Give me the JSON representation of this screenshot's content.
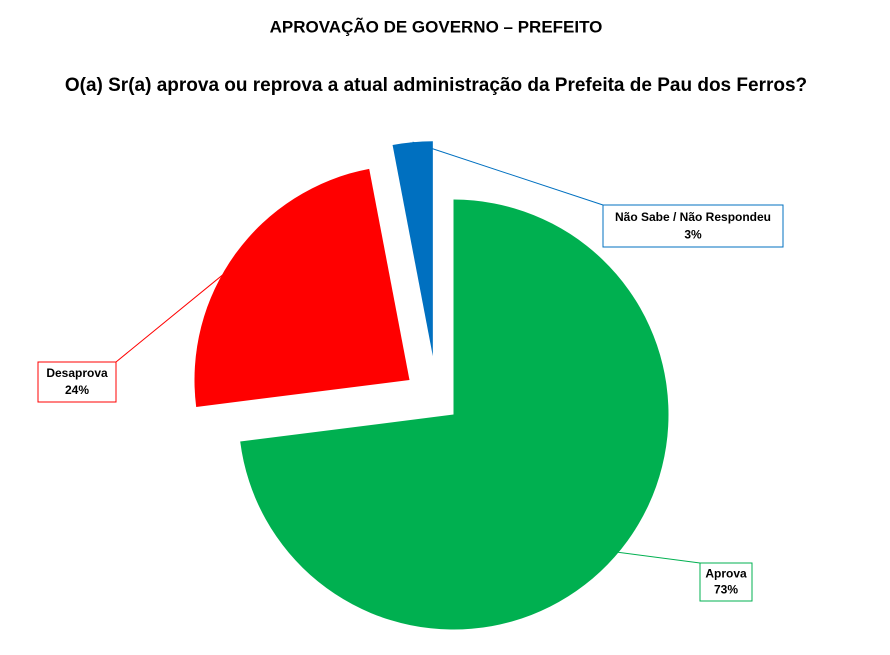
{
  "chart_data": {
    "type": "pie",
    "title": "APROVAÇÃO DE GOVERNO – PREFEITO",
    "subtitle": "O(a) Sr(a) aprova ou reprova a atual administração da Prefeita de Pau dos Ferros?",
    "categories": [
      "Aprova",
      "Desaprova",
      "Não Sabe / Não Respondeu"
    ],
    "values": [
      73,
      24,
      3
    ],
    "value_labels": [
      "73%",
      "24%",
      "3%"
    ],
    "colors": [
      "#00b050",
      "#ff0000",
      "#0070c0"
    ]
  }
}
